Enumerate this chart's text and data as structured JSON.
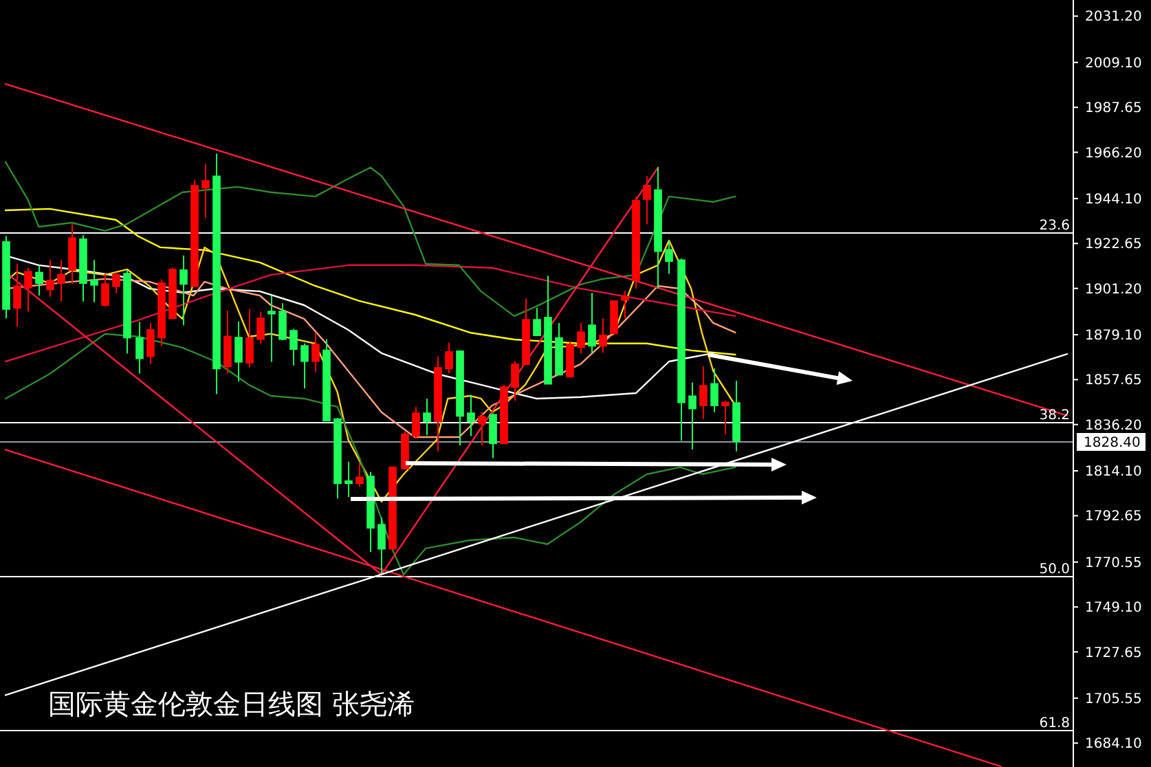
{
  "chart_data": {
    "type": "candlestick",
    "title": "国际黄金伦敦金日线图 张尧浠",
    "categories": [
      null,
      null,
      null,
      null,
      null,
      null,
      null,
      null,
      null,
      null,
      null,
      null,
      null,
      null,
      null,
      null,
      null,
      null,
      null,
      null,
      null,
      null,
      null,
      null,
      null,
      null,
      null,
      null,
      null,
      null,
      null,
      null,
      null,
      null,
      null,
      null,
      null,
      null,
      null,
      null,
      null,
      null,
      null,
      null,
      null,
      null,
      null,
      null,
      null,
      null,
      null,
      null,
      null,
      null,
      null,
      null,
      null,
      null,
      null,
      null,
      null,
      null,
      null,
      null,
      null,
      null,
      null,
      null,
      null,
      null,
      null,
      null,
      null,
      null,
      null,
      null,
      null,
      null,
      null,
      null,
      null,
      null,
      null,
      null,
      null,
      null,
      null,
      null,
      null,
      null,
      null,
      null,
      null,
      null,
      null,
      null,
      null
    ],
    "ohlc": [
      [
        1923.4,
        1926.2,
        1886.9,
        1891.3
      ],
      [
        1891.9,
        1913.1,
        1882.9,
        1902.2
      ],
      [
        1901.6,
        1911.0,
        1890.2,
        1909.2
      ],
      [
        1908.8,
        1912.1,
        1897.8,
        1903.7
      ],
      [
        1900.7,
        1914.7,
        1897.2,
        1904.9
      ],
      [
        1903.7,
        1914.7,
        1895.0,
        1907.7
      ],
      [
        1909.9,
        1931.8,
        1903.3,
        1925.2
      ],
      [
        1924.7,
        1926.7,
        1895.0,
        1903.7
      ],
      [
        1905.1,
        1914.7,
        1894.6,
        1902.9
      ],
      [
        1893.2,
        1908.1,
        1892.5,
        1903.3
      ],
      [
        1902.2,
        1908.8,
        1899.0,
        1907.7
      ],
      [
        1908.3,
        1909.9,
        1870.1,
        1877.7
      ],
      [
        1877.5,
        1885.2,
        1860.6,
        1867.8
      ],
      [
        1868.8,
        1884.7,
        1865.0,
        1881.4
      ],
      [
        1877.7,
        1905.5,
        1873.8,
        1903.7
      ],
      [
        1886.9,
        1911.0,
        1886.5,
        1910.3
      ],
      [
        1909.9,
        1916.9,
        1883.6,
        1903.3
      ],
      [
        1902.2,
        1953.0,
        1901.8,
        1950.3
      ],
      [
        1949.2,
        1960.6,
        1935.1,
        1952.5
      ],
      [
        1954.7,
        1965.6,
        1850.8,
        1862.9
      ],
      [
        1863.9,
        1890.6,
        1860.6,
        1878.2
      ],
      [
        1877.7,
        1885.4,
        1856.7,
        1866.1
      ],
      [
        1865.7,
        1891.3,
        1863.5,
        1877.5
      ],
      [
        1877.0,
        1890.2,
        1874.9,
        1886.9
      ],
      [
        1890.2,
        1897.8,
        1866.1,
        1889.1
      ],
      [
        1890.2,
        1894.1,
        1876.5,
        1877.0
      ],
      [
        1881.0,
        1881.9,
        1864.4,
        1872.2
      ],
      [
        1873.8,
        1874.9,
        1853.4,
        1866.5
      ],
      [
        1866.5,
        1879.9,
        1861.3,
        1874.4
      ],
      [
        1871.6,
        1877.0,
        1837.8,
        1838.1
      ],
      [
        1838.8,
        1839.4,
        1800.9,
        1808.1
      ],
      [
        1809.2,
        1818.4,
        1801.6,
        1808.1
      ],
      [
        1808.1,
        1818.0,
        1806.6,
        1811.0
      ],
      [
        1811.4,
        1813.6,
        1775.3,
        1786.9
      ],
      [
        1788.4,
        1791.7,
        1765.1,
        1776.9
      ],
      [
        1776.9,
        1816.3,
        1776.4,
        1815.8
      ],
      [
        1815.1,
        1832.9,
        1814.8,
        1831.6
      ],
      [
        1830.7,
        1844.7,
        1829.4,
        1841.6
      ],
      [
        1841.6,
        1848.6,
        1831.1,
        1837.7
      ],
      [
        1837.7,
        1868.8,
        1823.5,
        1863.3
      ],
      [
        1862.9,
        1875.3,
        1860.6,
        1870.9
      ],
      [
        1871.2,
        1871.6,
        1826.3,
        1840.3
      ],
      [
        1841.6,
        1850.4,
        1830.7,
        1837.7
      ],
      [
        1836.6,
        1842.1,
        1826.3,
        1839.9
      ],
      [
        1840.9,
        1841.6,
        1820.2,
        1827.2
      ],
      [
        1827.2,
        1855.2,
        1826.9,
        1854.1
      ],
      [
        1854.1,
        1866.5,
        1847.5,
        1865.0
      ],
      [
        1865.0,
        1896.3,
        1864.7,
        1886.2
      ],
      [
        1886.2,
        1891.9,
        1878.5,
        1878.8
      ],
      [
        1887.3,
        1907.2,
        1855.3,
        1855.6
      ],
      [
        1877.5,
        1884.7,
        1859.8,
        1860.0
      ],
      [
        1859.1,
        1876.0,
        1858.8,
        1874.4
      ],
      [
        1873.1,
        1884.7,
        1870.1,
        1880.3
      ],
      [
        1883.6,
        1899.0,
        1870.1,
        1873.8
      ],
      [
        1873.8,
        1886.9,
        1870.5,
        1878.8
      ],
      [
        1879.7,
        1895.5,
        1879.5,
        1895.2
      ],
      [
        1895.7,
        1900.0,
        1886.9,
        1897.2
      ],
      [
        1905.1,
        1944.9,
        1901.1,
        1943.1
      ],
      [
        1943.8,
        1954.7,
        1931.8,
        1950.3
      ],
      [
        1948.2,
        1959.1,
        1901.1,
        1919.0
      ],
      [
        1919.7,
        1924.1,
        1908.1,
        1914.2
      ],
      [
        1914.7,
        1915.4,
        1828.5,
        1846.8
      ],
      [
        1849.7,
        1856.3,
        1824.3,
        1843.8
      ],
      [
        1845.3,
        1864.0,
        1838.8,
        1854.7
      ],
      [
        1855.6,
        1862.9,
        1842.1,
        1845.3
      ],
      [
        1845.3,
        1847.5,
        1831.6,
        1846.8
      ],
      [
        1846.5,
        1857.0,
        1823.5,
        1828.4
      ],
      null,
      null,
      null,
      null,
      null,
      null,
      null,
      null,
      null,
      null,
      null,
      null,
      null,
      null,
      null,
      null,
      null,
      null,
      null,
      null,
      null,
      null,
      null,
      null,
      null,
      null,
      null,
      null,
      null,
      null
    ],
    "colors": [
      "#1eff5a",
      "#ff0000",
      "#ff0000",
      "#1eff5a",
      "#ff0000",
      "#ff0000",
      "#ff0000",
      "#1eff5a",
      "#1eff5a",
      "#ff0000",
      "#ff0000",
      "#1eff5a",
      "#1eff5a",
      "#ff0000",
      "#ff0000",
      "#ff0000",
      "#1eff5a",
      "#ff0000",
      "#ff0000",
      "#1eff5a",
      "#ff0000",
      "#1eff5a",
      "#ff0000",
      "#ff0000",
      "#1eff5a",
      "#1eff5a",
      "#1eff5a",
      "#1eff5a",
      "#ff0000",
      "#1eff5a",
      "#1eff5a",
      "#1eff5a",
      "#ff0000",
      "#1eff5a",
      "#1eff5a",
      "#ff0000",
      "#ff0000",
      "#ff0000",
      "#1eff5a",
      "#ff0000",
      "#ff0000",
      "#1eff5a",
      "#1eff5a",
      "#ff0000",
      "#1eff5a",
      "#ff0000",
      "#ff0000",
      "#ff0000",
      "#1eff5a",
      "#1eff5a",
      "#1eff5a",
      "#ff0000",
      "#ff0000",
      "#1eff5a",
      "#ff0000",
      "#ff0000",
      "#ff0000",
      "#ff0000",
      "#ff0000",
      "#1eff5a",
      "#1eff5a",
      "#1eff5a",
      "#1eff5a",
      "#ff0000",
      "#1eff5a",
      "#ff0000",
      "#1eff5a",
      null,
      null,
      null,
      null,
      null,
      null,
      null,
      null,
      null,
      null,
      null,
      null,
      null,
      null,
      null,
      null,
      null,
      null,
      null,
      null,
      null,
      null,
      null,
      null,
      null,
      null,
      null,
      null,
      null,
      null
    ],
    "ylim": [
      1672.7,
      2038.9
    ],
    "yticks": [
      {
        "value": 2031.2,
        "label": "2031.20"
      },
      {
        "value": 2009.1,
        "label": "2009.10"
      },
      1987.65,
      {
        "value": 1966.2,
        "label": "1966.20"
      },
      {
        "value": 1944.1,
        "label": "1944.10"
      },
      1922.65,
      {
        "value": 1901.2,
        "label": "1901.20"
      },
      {
        "value": 1879.1,
        "label": "1879.10"
      },
      1857.65,
      {
        "value": 1836.2,
        "label": "1836.20"
      },
      {
        "value": 1814.1,
        "label": "1814.10"
      },
      1792.65,
      1770.55,
      {
        "value": 1749.1,
        "label": "1749.10"
      },
      1727.65,
      1705.55,
      {
        "value": 1684.1,
        "label": "1684.10"
      }
    ],
    "tick_labels": "y",
    "ref_lines": [
      {
        "axis": "y",
        "value": 1927.7,
        "color": "#ffffff"
      },
      {
        "axis": "y",
        "value": 1837.5,
        "color": "#ffffff"
      },
      {
        "axis": "y",
        "value": 1763.9,
        "color": "#ffffff"
      },
      {
        "axis": "y",
        "value": 1690.3,
        "color": "#ffffff"
      },
      {
        "axis": "y",
        "value": 1828.4,
        "label": "1828.40",
        "color": "#8c9aa6"
      }
    ],
    "annotations": [
      {
        "text": "23.6",
        "y": 1927.7
      },
      {
        "text": "38.2",
        "y": 1837.5
      },
      {
        "text": "50.0",
        "y": 1763.9
      },
      {
        "text": "61.8",
        "y": 1690.3
      }
    ],
    "series": [
      {
        "type": "line",
        "color": "#ffff00",
        "values": [
          1938.5,
          null,
          null,
          null,
          1939.2,
          null,
          null,
          null,
          null,
          null,
          1933.9,
          null,
          1926.1,
          null,
          1920.8,
          null,
          null,
          null,
          1919.5,
          null,
          null,
          null,
          null,
          1913.6,
          null,
          null,
          null,
          null,
          1902.4,
          null,
          null,
          null,
          1895.2,
          null,
          null,
          null,
          null,
          1888.7,
          null,
          null,
          null,
          null,
          1880.1,
          null,
          null,
          null,
          1876.8,
          null,
          null,
          null,
          null,
          null,
          1874.9,
          null,
          null,
          null,
          null,
          null,
          1874.9,
          null,
          null,
          null,
          1871.6,
          null,
          null,
          null,
          1869.6,
          null,
          null,
          null,
          null,
          null,
          null,
          null,
          null,
          null,
          null,
          null,
          null,
          null,
          null,
          null,
          null,
          null,
          null,
          null,
          null,
          null,
          null,
          null,
          null,
          null,
          null,
          null,
          null,
          null,
          null
        ]
      },
      {
        "type": "line",
        "color": "#ffffff",
        "values": [
          1916.9,
          null,
          null,
          1912.3,
          null,
          null,
          null,
          1909.7,
          null,
          null,
          null,
          1906.4,
          null,
          1901.1,
          null,
          null,
          1899.2,
          null,
          null,
          1901.1,
          null,
          null,
          null,
          1899.8,
          null,
          null,
          null,
          1893.2,
          null,
          null,
          null,
          1881.4,
          null,
          null,
          1870.3,
          null,
          null,
          null,
          null,
          1860.4,
          null,
          null,
          null,
          1855.2,
          null,
          null,
          null,
          null,
          1848.6,
          null,
          null,
          null,
          1849.3,
          null,
          null,
          null,
          null,
          1851.2,
          null,
          null,
          1866.3,
          null,
          null,
          null,
          1870.3,
          null,
          null,
          null,
          null,
          null,
          null,
          null,
          null,
          null,
          null,
          null,
          null,
          null,
          null,
          null,
          null,
          null,
          null,
          null,
          null,
          null,
          null,
          null,
          null,
          null,
          null,
          null,
          null,
          null,
          null,
          null,
          null
        ]
      },
      {
        "type": "line",
        "color": "#ffd21e",
        "values": [
          1904.4,
          1909.0,
          null,
          null,
          1903.7,
          null,
          1909.7,
          null,
          null,
          1907.7,
          null,
          1910.3,
          null,
          1902.4,
          null,
          1891.3,
          1886.7,
          null,
          1920.8,
          1917.5,
          1904.4,
          null,
          1878.2,
          null,
          1879.5,
          null,
          null,
          null,
          1874.9,
          null,
          1851.9,
          1828.9,
          null,
          null,
          1799.4,
          null,
          1812.5,
          null,
          null,
          1828.9,
          1848.6,
          null,
          1849.9,
          1848.6,
          1842.1,
          1845.3,
          null,
          1855.2,
          1863.7,
          1872.9,
          null,
          1873.6,
          null,
          1874.9,
          null,
          1879.5,
          null,
          1907.7,
          null,
          1912.3,
          1924.1,
          null,
          1901.1,
          1879.5,
          1861.7,
          null,
          1845.3,
          null,
          null,
          null,
          null,
          null,
          null,
          null,
          null,
          null,
          null,
          null,
          null,
          null,
          null,
          null,
          null,
          null,
          null,
          null,
          null,
          null,
          null,
          null,
          null,
          null,
          null,
          null,
          null,
          null,
          null
        ]
      },
      {
        "type": "line",
        "color": "#ffa07a",
        "values": [
          1901.1,
          null,
          null,
          null,
          null,
          null,
          1904.4,
          null,
          null,
          1905.7,
          null,
          null,
          null,
          1904.4,
          null,
          null,
          null,
          1897.8,
          1904.4,
          null,
          1901.1,
          null,
          null,
          1897.8,
          1893.2,
          null,
          null,
          1886.7,
          null,
          1874.9,
          null,
          null,
          1855.2,
          null,
          1842.1,
          null,
          null,
          1830.2,
          null,
          null,
          null,
          1830.2,
          null,
          null,
          1845.3,
          null,
          null,
          null,
          1855.2,
          null,
          null,
          null,
          1865.0,
          null,
          1874.9,
          null,
          null,
          1891.3,
          null,
          1902.4,
          null,
          1901.1,
          null,
          1891.3,
          1884.7,
          null,
          1880.1,
          null,
          null,
          null,
          null,
          null,
          null,
          null,
          null,
          null,
          null,
          null,
          null,
          null,
          null,
          null,
          null,
          null,
          null,
          null,
          null,
          null,
          null,
          null,
          null,
          null,
          null,
          null,
          null,
          null,
          null
        ]
      },
      {
        "type": "line",
        "color": "#dc143c",
        "values": [
          1866.3,
          null,
          null,
          null,
          null,
          null,
          1876.2,
          null,
          null,
          null,
          null,
          null,
          1886.0,
          null,
          null,
          null,
          null,
          null,
          1897.2,
          null,
          null,
          null,
          null,
          null,
          1907.7,
          null,
          null,
          null,
          null,
          null,
          null,
          1912.3,
          null,
          null,
          null,
          null,
          null,
          1912.3,
          null,
          null,
          null,
          null,
          null,
          null,
          1911.0,
          null,
          null,
          null,
          null,
          null,
          null,
          null,
          1901.1,
          null,
          null,
          null,
          null,
          null,
          null,
          1894.6,
          null,
          null,
          null,
          null,
          null,
          null,
          1888.0,
          null,
          null,
          null,
          null,
          null,
          null,
          null,
          null,
          null,
          null,
          null,
          null,
          null,
          null,
          null,
          null,
          null,
          null,
          null,
          null,
          null,
          null,
          null,
          null,
          null,
          null,
          null,
          null,
          null,
          null
        ]
      },
      {
        "type": "line",
        "color": "#2e8b2e",
        "values": [
          1961.5,
          null,
          1943.8,
          1930.6,
          null,
          null,
          1932.6,
          null,
          null,
          1928.7,
          null,
          1932.0,
          null,
          null,
          null,
          null,
          1947.1,
          null,
          null,
          null,
          null,
          1949.7,
          null,
          null,
          1947.1,
          null,
          null,
          null,
          1945.1,
          null,
          null,
          1953.6,
          null,
          1958.9,
          1954.9,
          null,
          1940.5,
          null,
          1912.9,
          null,
          null,
          1912.3,
          null,
          1899.8,
          null,
          null,
          1888.0,
          null,
          1892.6,
          null,
          null,
          null,
          1903.1,
          null,
          1905.7,
          null,
          null,
          1907.7,
          null,
          null,
          1945.1,
          null,
          null,
          null,
          1942.5,
          null,
          1945.1,
          null,
          null,
          null,
          null,
          null,
          null,
          null,
          null,
          null,
          null,
          null,
          null,
          null,
          null,
          null,
          null,
          null,
          null,
          null,
          null,
          null,
          null,
          null,
          null,
          null,
          null,
          null,
          null,
          null,
          null
        ]
      },
      {
        "type": "line",
        "color": "#2e8b2e",
        "values": [
          1848.6,
          null,
          null,
          null,
          1860.4,
          null,
          null,
          null,
          null,
          1879.5,
          null,
          null,
          1878.2,
          null,
          null,
          null,
          1872.9,
          null,
          null,
          1866.3,
          null,
          null,
          1855.2,
          null,
          1849.9,
          null,
          null,
          1848.6,
          null,
          null,
          1844.7,
          null,
          1820.4,
          null,
          null,
          1776.4,
          1764.6,
          null,
          1777.1,
          null,
          null,
          null,
          1781.0,
          null,
          null,
          null,
          1782.3,
          null,
          null,
          1779.1,
          null,
          null,
          1789.6,
          null,
          null,
          1802.7,
          null,
          null,
          1812.5,
          null,
          null,
          1815.8,
          null,
          1812.5,
          null,
          null,
          1815.8,
          null,
          null,
          null,
          null,
          null,
          null,
          null,
          null,
          null,
          null,
          null,
          null,
          null,
          null,
          null,
          null,
          null,
          null,
          null,
          null,
          null,
          null,
          null,
          null,
          null,
          null,
          null,
          null,
          null,
          null
        ]
      },
      {
        "type": "line",
        "color": "#ff1e3c",
        "values": [
          1998.8,
          null,
          null,
          null,
          null,
          null,
          null,
          null,
          null,
          null,
          null,
          null,
          null,
          null,
          null,
          null,
          null,
          null,
          null,
          null,
          null,
          null,
          null,
          null,
          null,
          null,
          null,
          null,
          null,
          null,
          null,
          null,
          null,
          null,
          null,
          null,
          null,
          null,
          null,
          null,
          null,
          null,
          null,
          null,
          null,
          null,
          null,
          null,
          null,
          null,
          null,
          null,
          null,
          null,
          null,
          null,
          null,
          null,
          null,
          null,
          null,
          null,
          null,
          null,
          null,
          null,
          null,
          null,
          null,
          null,
          null,
          null,
          null,
          null,
          null,
          null,
          null,
          null,
          null,
          null,
          null,
          null,
          null,
          null,
          null,
          null,
          null,
          null,
          null,
          null,
          null,
          null,
          null,
          null,
          null,
          null,
          1840.5
        ]
      },
      {
        "type": "line",
        "color": "#ff1e3c",
        "values": [
          1824.2,
          null,
          null,
          null,
          null,
          null,
          null,
          null,
          null,
          null,
          null,
          null,
          null,
          null,
          null,
          null,
          null,
          null,
          null,
          null,
          null,
          null,
          null,
          null,
          null,
          null,
          null,
          null,
          null,
          null,
          null,
          null,
          null,
          null,
          null,
          null,
          null,
          null,
          null,
          null,
          null,
          null,
          null,
          null,
          null,
          null,
          null,
          null,
          null,
          null,
          null,
          null,
          null,
          null,
          null,
          null,
          null,
          null,
          null,
          null,
          null,
          null,
          null,
          null,
          null,
          null,
          null,
          null,
          null,
          null,
          null,
          null,
          null,
          null,
          null,
          null,
          null,
          null,
          null,
          null,
          null,
          null,
          null,
          null,
          null,
          null,
          null,
          null,
          null,
          null,
          1673.0,
          null,
          null,
          null,
          null,
          null,
          null
        ]
      },
      {
        "type": "line",
        "color": "#ff1e3c",
        "values": [
          1908.9,
          null,
          null,
          null,
          null,
          null,
          null,
          null,
          null,
          null,
          null,
          null,
          null,
          null,
          null,
          null,
          null,
          null,
          null,
          null,
          null,
          null,
          null,
          null,
          null,
          null,
          null,
          null,
          null,
          null,
          null,
          null,
          null,
          null,
          1764.6,
          null,
          null,
          null,
          null,
          null,
          null,
          null,
          null,
          null,
          null,
          null,
          null,
          null,
          null,
          null,
          null,
          null,
          null,
          null,
          null,
          null,
          null,
          null,
          null,
          null,
          null,
          null,
          null,
          null,
          null,
          null,
          null,
          null,
          null,
          null,
          null,
          null,
          null,
          null,
          null,
          null,
          null,
          null,
          null,
          null,
          null,
          null,
          null,
          null,
          null,
          null,
          null,
          null,
          null,
          null,
          null,
          null,
          null,
          null,
          null,
          null,
          null
        ]
      },
      {
        "type": "line",
        "color": "#ff1e3c",
        "values": [
          null,
          null,
          null,
          null,
          null,
          null,
          null,
          null,
          null,
          null,
          null,
          null,
          null,
          null,
          null,
          null,
          null,
          null,
          null,
          null,
          null,
          null,
          null,
          null,
          null,
          null,
          null,
          null,
          null,
          null,
          null,
          null,
          null,
          null,
          1764.6,
          null,
          null,
          null,
          null,
          null,
          null,
          null,
          null,
          null,
          null,
          null,
          null,
          null,
          null,
          null,
          null,
          null,
          null,
          null,
          null,
          null,
          null,
          null,
          null,
          1958.9,
          null,
          null,
          null,
          null,
          null,
          null,
          null,
          null,
          null,
          null,
          null,
          null,
          null,
          null,
          null,
          null,
          null,
          null,
          null,
          null,
          null,
          null,
          null,
          null,
          null,
          null,
          null,
          null,
          null,
          null,
          null,
          null,
          null,
          null,
          null,
          null,
          null
        ]
      },
      {
        "type": "line",
        "color": "#ffffff",
        "values": [
          1707.0,
          null,
          null,
          null,
          null,
          null,
          null,
          null,
          null,
          null,
          null,
          null,
          null,
          null,
          null,
          null,
          null,
          null,
          null,
          null,
          null,
          null,
          null,
          null,
          null,
          null,
          null,
          null,
          null,
          null,
          null,
          null,
          null,
          null,
          null,
          null,
          null,
          null,
          null,
          null,
          null,
          null,
          null,
          null,
          null,
          null,
          null,
          null,
          null,
          null,
          null,
          null,
          null,
          null,
          null,
          null,
          null,
          null,
          null,
          null,
          null,
          null,
          null,
          null,
          null,
          null,
          null,
          null,
          null,
          null,
          null,
          null,
          null,
          null,
          null,
          null,
          null,
          null,
          null,
          null,
          null,
          null,
          null,
          null,
          null,
          null,
          null,
          null,
          null,
          null,
          null,
          null,
          null,
          null,
          null,
          null,
          1869.9
        ]
      }
    ]
  }
}
